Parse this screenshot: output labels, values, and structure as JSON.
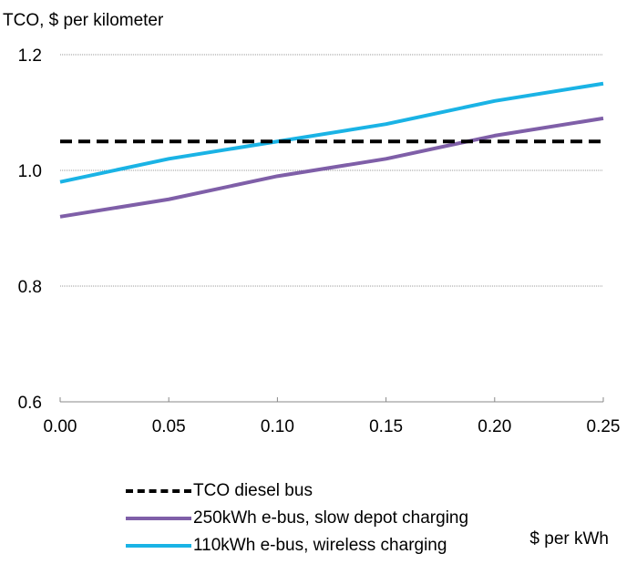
{
  "chart_data": {
    "type": "line",
    "ylabel": "TCO, $ per kilometer",
    "xlabel": "$ per kWh",
    "x": [
      0.0,
      0.05,
      0.1,
      0.15,
      0.2,
      0.25
    ],
    "x_ticks": [
      "0.00",
      "0.05",
      "0.10",
      "0.15",
      "0.20",
      "0.25"
    ],
    "xlim": [
      0.0,
      0.25
    ],
    "ylim": [
      0.6,
      1.2
    ],
    "y_ticks": [
      "0.6",
      "0.8",
      "1.0",
      "1.2"
    ],
    "y_tick_values": [
      0.6,
      0.8,
      1.0,
      1.2
    ],
    "grid": "horizontal",
    "legend_position": "bottom",
    "series": [
      {
        "name": "TCO diesel bus",
        "values": [
          1.05,
          1.05,
          1.05,
          1.05,
          1.05,
          1.05
        ],
        "color": "#000000",
        "style": "dashed"
      },
      {
        "name": "250kWh e-bus, slow depot charging",
        "values": [
          0.92,
          0.95,
          0.99,
          1.02,
          1.06,
          1.09
        ],
        "color": "#7F5FA8",
        "style": "solid"
      },
      {
        "name": "110kWh e-bus, wireless charging",
        "values": [
          0.98,
          1.02,
          1.05,
          1.08,
          1.12,
          1.15
        ],
        "color": "#1AB3E5",
        "style": "solid"
      }
    ]
  }
}
